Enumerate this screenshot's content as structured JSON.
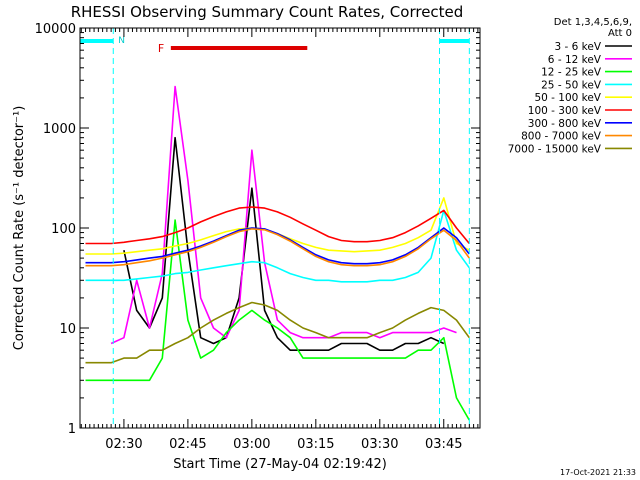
{
  "chart_data": {
    "type": "line",
    "title": "RHESSI Observing Summary Count Rates, Corrected",
    "xlabel": "Start Time (27-May-04 02:19:42)",
    "ylabel": "Corrected Count Rate (s⁻¹ detector⁻¹)",
    "y_scale": "log",
    "ylim": [
      1,
      10000
    ],
    "xlim": [
      "02:19:42",
      "03:53:30"
    ],
    "x_ticks": [
      "02:30",
      "02:45",
      "03:00",
      "03:15",
      "03:30",
      "03:45"
    ],
    "y_ticks": [
      "1",
      "10",
      "100",
      "1000",
      "10000"
    ],
    "grid": false,
    "legend_position": "right",
    "legend_header": [
      "Det 1,3,4,5,6,9,",
      "Att 0"
    ],
    "footer_date": "17-Oct-2021 21:33",
    "annotations": {
      "night_marker": "N",
      "flare_marker": "F",
      "night_intervals": [
        [
          "02:19:42",
          "02:27:30"
        ],
        [
          "03:44:00",
          "03:51:00"
        ]
      ],
      "flare_interval": [
        "02:41:00",
        "03:13:00"
      ],
      "dashed_lines": [
        "02:27:30",
        "03:44:00",
        "03:51:00"
      ]
    },
    "x": [
      "02:21",
      "02:27",
      "02:30",
      "02:33",
      "02:36",
      "02:39",
      "02:42",
      "02:45",
      "02:48",
      "02:51",
      "02:54",
      "02:57",
      "03:00",
      "03:03",
      "03:06",
      "03:09",
      "03:12",
      "03:15",
      "03:18",
      "03:21",
      "03:24",
      "03:27",
      "03:30",
      "03:33",
      "03:36",
      "03:39",
      "03:42",
      "03:45",
      "03:48",
      "03:51"
    ],
    "series": [
      {
        "name": "3 - 6 keV",
        "color": "#000000",
        "values": [
          null,
          null,
          60,
          15,
          10,
          20,
          800,
          60,
          8,
          7,
          8,
          20,
          250,
          15,
          8,
          6,
          6,
          6,
          6,
          7,
          7,
          7,
          6,
          6,
          7,
          7,
          8,
          7,
          null,
          null
        ]
      },
      {
        "name": "6 - 12 keV",
        "color": "#ff00ff",
        "values": [
          null,
          7,
          8,
          30,
          10,
          35,
          2600,
          300,
          20,
          10,
          8,
          15,
          600,
          45,
          12,
          9,
          8,
          8,
          8,
          9,
          9,
          9,
          8,
          9,
          9,
          9,
          9,
          10,
          9,
          null
        ]
      },
      {
        "name": "12 - 25 keV",
        "color": "#00ff00",
        "values": [
          3,
          3,
          3,
          3,
          3,
          5,
          120,
          12,
          5,
          6,
          9,
          12,
          15,
          12,
          10,
          8,
          5,
          5,
          5,
          5,
          5,
          5,
          5,
          5,
          5,
          6,
          6,
          8,
          2,
          1.2
        ]
      },
      {
        "name": "25 - 50 keV",
        "color": "#00ffff",
        "values": [
          30,
          30,
          30,
          31,
          32,
          33,
          35,
          36,
          38,
          40,
          42,
          44,
          46,
          45,
          40,
          35,
          32,
          30,
          30,
          29,
          29,
          29,
          30,
          30,
          32,
          36,
          50,
          150,
          60,
          40
        ]
      },
      {
        "name": "50 - 100 keV",
        "color": "#ffff00",
        "values": [
          55,
          55,
          56,
          58,
          60,
          62,
          66,
          70,
          76,
          84,
          92,
          98,
          100,
          97,
          88,
          78,
          70,
          64,
          60,
          59,
          58,
          59,
          60,
          64,
          70,
          80,
          95,
          200,
          70,
          60
        ]
      },
      {
        "name": "100 - 300 keV",
        "color": "#ff0000",
        "values": [
          70,
          70,
          72,
          75,
          78,
          82,
          90,
          100,
          115,
          130,
          145,
          158,
          162,
          158,
          145,
          128,
          110,
          95,
          82,
          75,
          73,
          73,
          75,
          80,
          90,
          105,
          125,
          150,
          100,
          70
        ]
      },
      {
        "name": "300 - 800 keV",
        "color": "#0000ff",
        "values": [
          45,
          45,
          46,
          48,
          50,
          52,
          56,
          60,
          66,
          74,
          84,
          95,
          100,
          98,
          88,
          76,
          64,
          54,
          48,
          45,
          44,
          44,
          45,
          48,
          54,
          64,
          80,
          100,
          80,
          55
        ]
      },
      {
        "name": "800 - 7000 keV",
        "color": "#ff8800",
        "values": [
          42,
          42,
          43,
          45,
          47,
          50,
          54,
          58,
          64,
          72,
          82,
          92,
          98,
          96,
          86,
          74,
          62,
          52,
          46,
          43,
          42,
          42,
          43,
          46,
          52,
          62,
          78,
          95,
          75,
          50
        ]
      },
      {
        "name": "7000 - 15000 keV",
        "color": "#888800",
        "values": [
          4.5,
          4.5,
          5,
          5,
          6,
          6,
          7,
          8,
          10,
          12,
          14,
          16,
          18,
          17,
          15,
          12,
          10,
          9,
          8,
          8,
          8,
          8,
          9,
          10,
          12,
          14,
          16,
          15,
          12,
          8
        ]
      }
    ]
  }
}
